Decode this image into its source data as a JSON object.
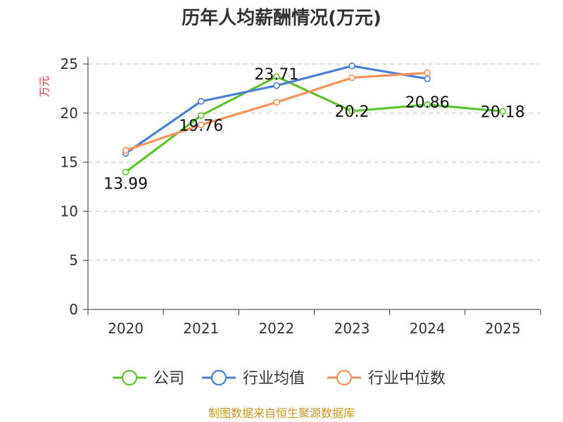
{
  "chart_data": {
    "type": "line",
    "title": "历年人均薪酬情况(万元)",
    "ylabel": "万元",
    "xlabel": "",
    "categories": [
      "2020",
      "2021",
      "2022",
      "2023",
      "2024",
      "2025"
    ],
    "ylim": [
      0,
      25
    ],
    "yticks": [
      0,
      5,
      10,
      15,
      20,
      25
    ],
    "grid": true,
    "legend_position": "bottom",
    "series": [
      {
        "name": "公司",
        "color": "#5fc52e",
        "values": [
          13.99,
          19.76,
          23.71,
          20.2,
          20.86,
          20.18
        ],
        "labels": [
          "13.99",
          "19.76",
          "23.71",
          "20.2",
          "20.86",
          "20.18"
        ]
      },
      {
        "name": "行业均值",
        "color": "#4a7fd6",
        "values": [
          15.9,
          21.2,
          22.8,
          24.8,
          23.5,
          null
        ]
      },
      {
        "name": "行业中位数",
        "color": "#f5925a",
        "values": [
          16.2,
          18.8,
          21.1,
          23.6,
          24.1,
          null
        ]
      }
    ]
  },
  "source_text": "制图数据来自恒生聚源数据库",
  "colors": {
    "ylabel": "#e03030",
    "source": "#c8961e",
    "grid": "#cccccc",
    "axis": "#333333"
  }
}
